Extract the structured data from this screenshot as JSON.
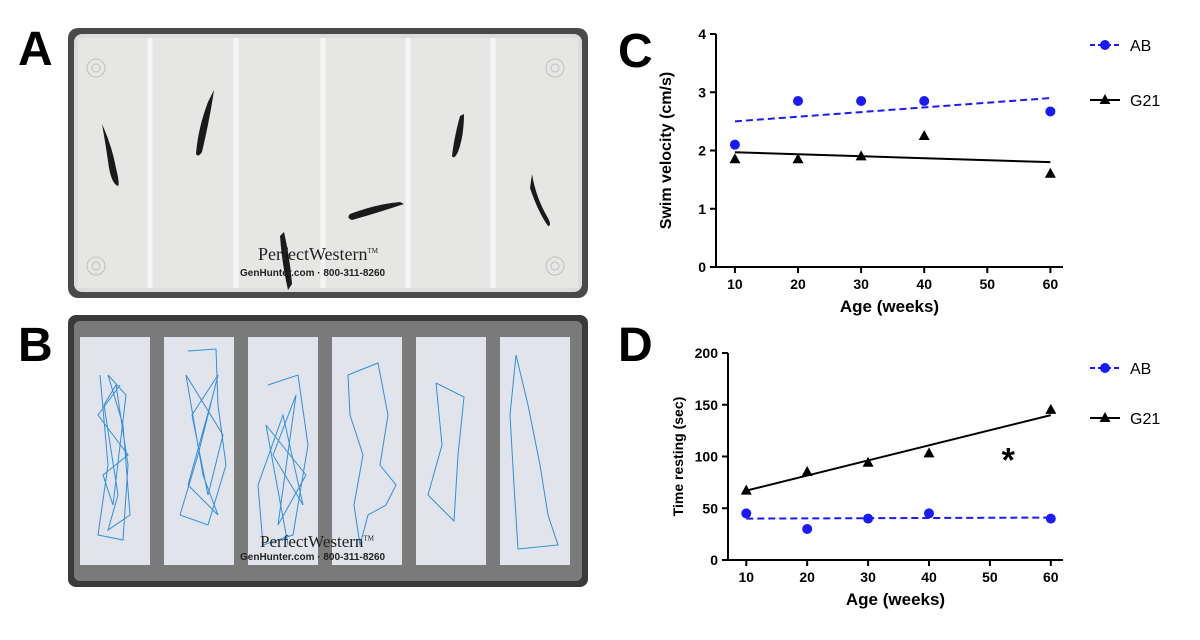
{
  "panels": {
    "a": {
      "letter": "A",
      "brand": "PerfectWestern",
      "tm": "TM",
      "contact": "GenHunter.com · 800-311-8260"
    },
    "b": {
      "letter": "B",
      "brand": "PerfectWestern",
      "tm": "TM",
      "contact": "GenHunter.com · 800-311-8260"
    },
    "c": {
      "letter": "C"
    },
    "d": {
      "letter": "D"
    }
  },
  "colors": {
    "ab": "#1a1aff",
    "g21": "#000000",
    "track": "#2f8fe0"
  },
  "chart_data": [
    {
      "id": "c",
      "type": "scatter",
      "xlabel": "Age  (weeks)",
      "ylabel": "Swim velocity  (cm/s)",
      "xlim": [
        7,
        62
      ],
      "ylim": [
        0,
        4
      ],
      "xticks": [
        10,
        20,
        30,
        40,
        50,
        60
      ],
      "yticks": [
        0,
        1,
        2,
        3,
        4
      ],
      "legend_position": "right",
      "series": [
        {
          "name": "AB",
          "marker": "circle",
          "line": "dashed",
          "x": [
            10,
            20,
            30,
            40,
            60
          ],
          "y": [
            2.1,
            2.85,
            2.85,
            2.85,
            2.67
          ],
          "fit": [
            [
              10,
              2.5
            ],
            [
              60,
              2.9
            ]
          ]
        },
        {
          "name": "G21",
          "marker": "triangle",
          "line": "solid",
          "x": [
            10,
            20,
            30,
            40,
            60
          ],
          "y": [
            1.85,
            1.85,
            1.9,
            2.25,
            1.6
          ],
          "fit": [
            [
              10,
              1.97
            ],
            [
              60,
              1.8
            ]
          ]
        }
      ],
      "annotations": []
    },
    {
      "id": "d",
      "type": "scatter",
      "xlabel": "Age  (weeks)",
      "ylabel": "Time resting (sec)",
      "xlim": [
        7,
        62
      ],
      "ylim": [
        0,
        200
      ],
      "xticks": [
        10,
        20,
        30,
        40,
        50,
        60
      ],
      "yticks": [
        0,
        50,
        100,
        150,
        200
      ],
      "legend_position": "right",
      "series": [
        {
          "name": "AB",
          "marker": "circle",
          "line": "dashed",
          "x": [
            10,
            20,
            30,
            40,
            60
          ],
          "y": [
            45,
            30,
            40,
            45,
            40
          ],
          "fit": [
            [
              10,
              40
            ],
            [
              60,
              41
            ]
          ]
        },
        {
          "name": "G21",
          "marker": "triangle",
          "line": "solid",
          "x": [
            10,
            20,
            30,
            40,
            60
          ],
          "y": [
            67,
            85,
            94,
            103,
            145
          ],
          "fit": [
            [
              10,
              67
            ],
            [
              60,
              140
            ]
          ]
        }
      ],
      "annotations": [
        {
          "text": "*",
          "x": 53,
          "y": 105
        }
      ]
    }
  ]
}
